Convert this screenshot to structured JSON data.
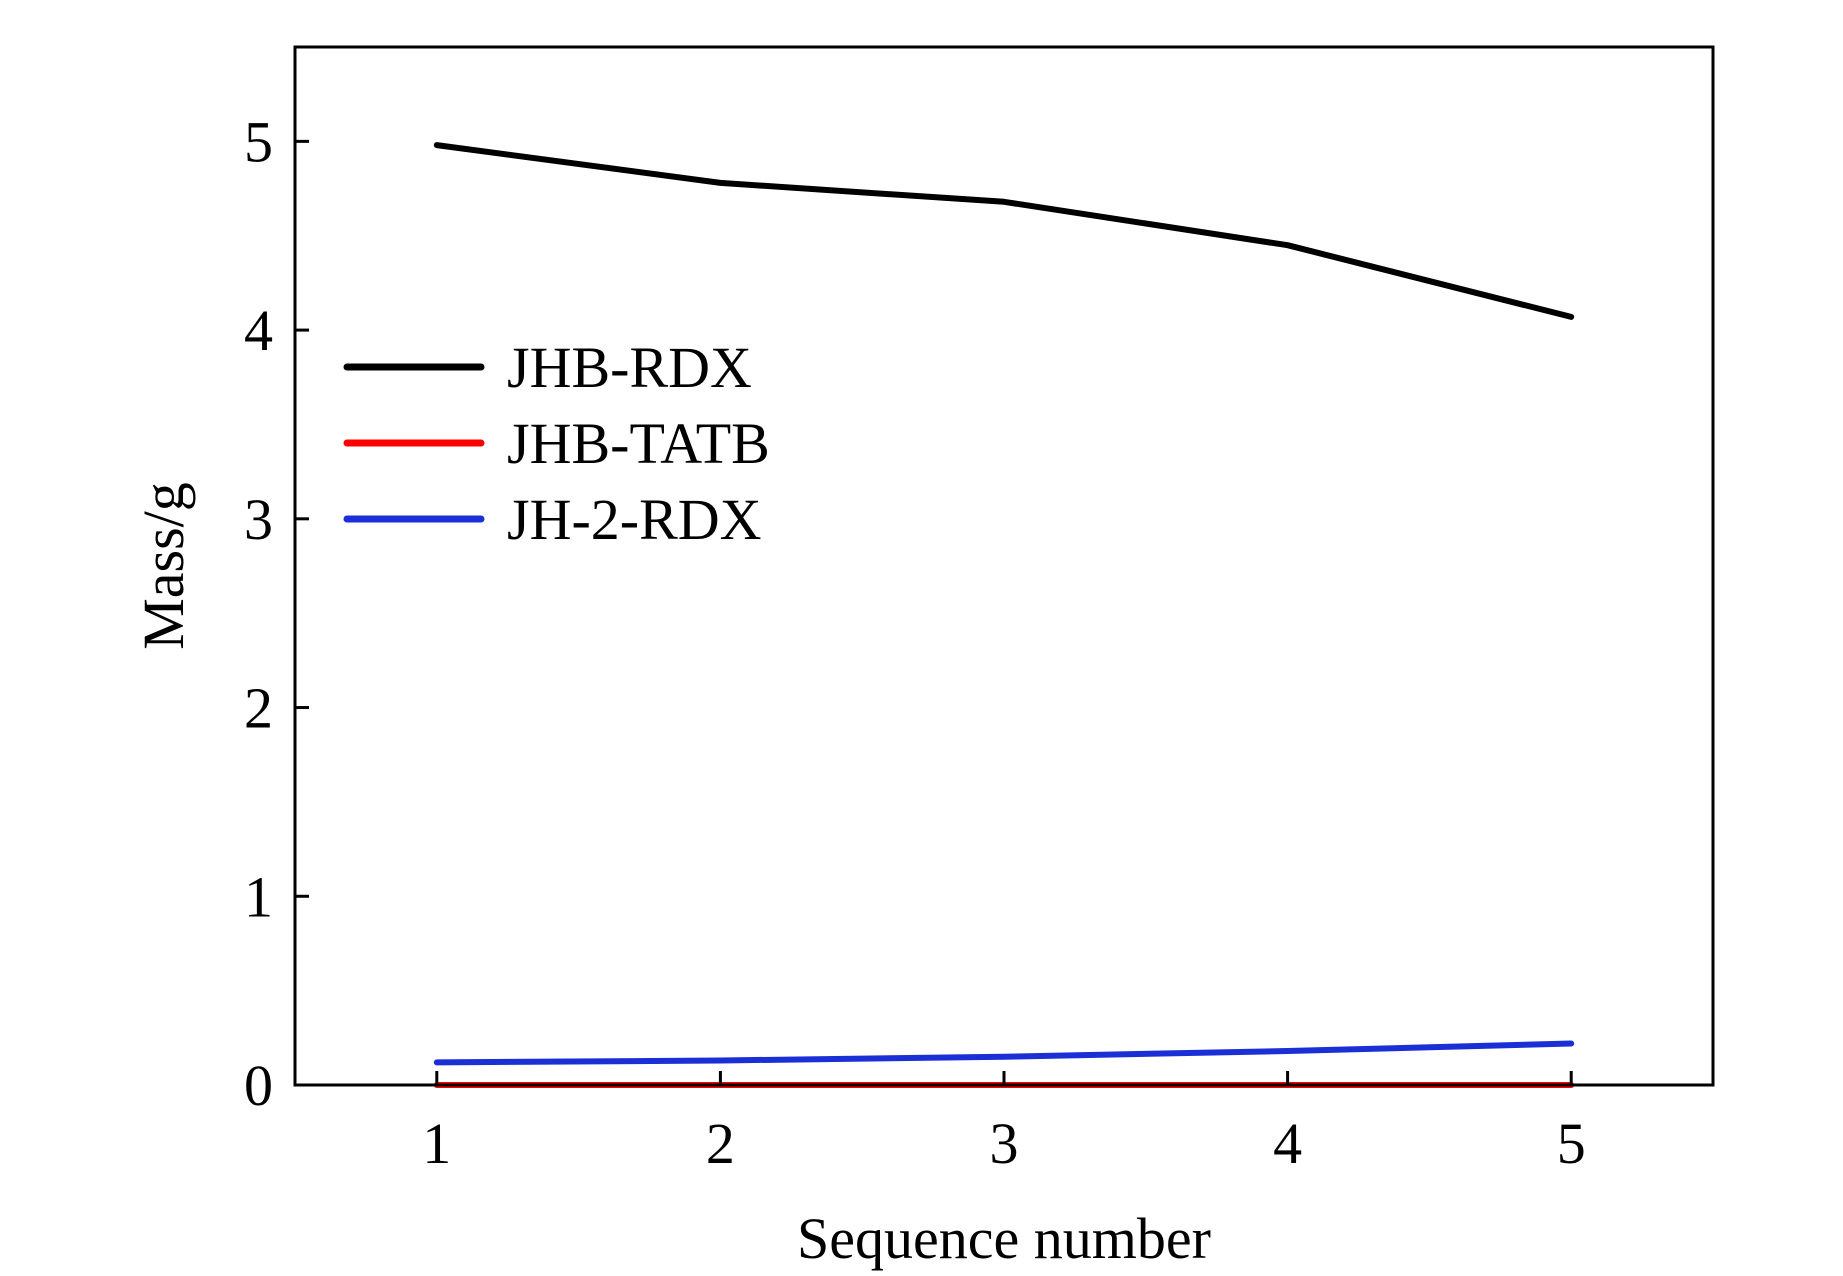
{
  "chart_data": {
    "type": "line",
    "title": "",
    "xlabel": "Sequence number",
    "ylabel": "Mass/g",
    "xlim": [
      0.5,
      5.5
    ],
    "ylim": [
      0,
      5.5
    ],
    "x_ticks": [
      "1",
      "2",
      "3",
      "4",
      "5"
    ],
    "y_ticks": [
      "0",
      "1",
      "2",
      "3",
      "4",
      "5"
    ],
    "grid": false,
    "legend_position": "upper-left",
    "x": [
      1,
      2,
      3,
      4,
      5
    ],
    "series": [
      {
        "name": "JHB-RDX",
        "color": "#000000",
        "values": [
          4.98,
          4.78,
          4.68,
          4.45,
          4.07
        ]
      },
      {
        "name": "JHB-TATB",
        "color": "#ff0000",
        "values": [
          0.0,
          0.0,
          0.0,
          0.0,
          0.0
        ]
      },
      {
        "name": "JH-2-RDX",
        "color": "#1a2fd6",
        "values": [
          0.12,
          0.13,
          0.15,
          0.18,
          0.22
        ]
      }
    ]
  }
}
